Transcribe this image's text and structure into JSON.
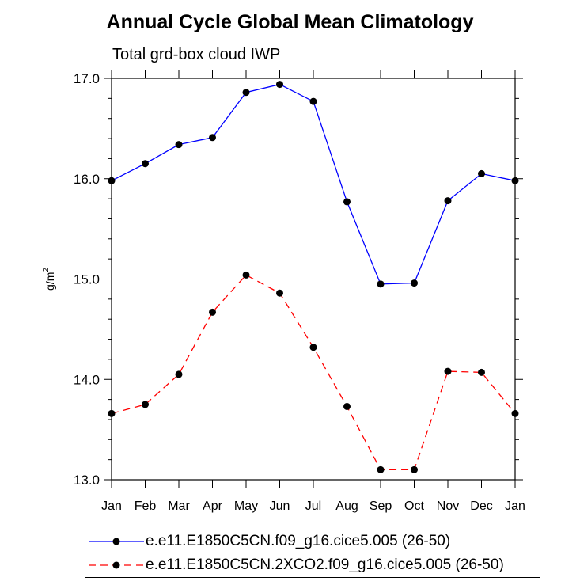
{
  "chart_data": {
    "type": "line",
    "title": "Annual Cycle Global Mean Climatology",
    "subtitle": "Total grd-box cloud IWP",
    "xlabel": "",
    "ylabel": "g/m",
    "ylabel_superscript": "2",
    "categories": [
      "Jan",
      "Feb",
      "Mar",
      "Apr",
      "May",
      "Jun",
      "Jul",
      "Aug",
      "Sep",
      "Oct",
      "Nov",
      "Dec",
      "Jan"
    ],
    "ylim": [
      13.0,
      17.0
    ],
    "yticks": [
      "13.0",
      "14.0",
      "15.0",
      "16.0",
      "17.0"
    ],
    "ytick_values": [
      13.0,
      14.0,
      15.0,
      16.0,
      17.0
    ],
    "grid": false,
    "legend_position": "bottom",
    "series": [
      {
        "name": "e.e11.E1850C5CN.f09_g16.cice5.005 (26-50)",
        "color": "#0000ff",
        "dash": "solid",
        "values": [
          15.98,
          16.15,
          16.34,
          16.41,
          16.86,
          16.94,
          16.77,
          15.77,
          14.95,
          14.96,
          15.78,
          16.05,
          15.98
        ]
      },
      {
        "name": "e.e11.E1850C5CN.2XCO2.f09_g16.cice5.005 (26-50)",
        "color": "#ff0000",
        "dash": "dashed",
        "values": [
          13.66,
          13.75,
          14.05,
          14.67,
          15.04,
          14.86,
          14.32,
          13.73,
          13.1,
          13.1,
          14.08,
          14.07,
          13.66
        ]
      }
    ]
  }
}
